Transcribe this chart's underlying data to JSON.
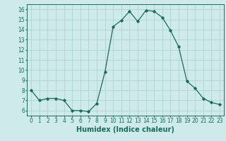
{
  "x": [
    0,
    1,
    2,
    3,
    4,
    5,
    6,
    7,
    8,
    9,
    10,
    11,
    12,
    13,
    14,
    15,
    16,
    17,
    18,
    19,
    20,
    21,
    22,
    23
  ],
  "y": [
    8.0,
    7.0,
    7.2,
    7.2,
    7.0,
    6.0,
    6.0,
    5.9,
    6.7,
    9.8,
    14.3,
    14.9,
    15.8,
    14.8,
    15.9,
    15.8,
    15.2,
    13.9,
    12.3,
    8.9,
    8.2,
    7.2,
    6.8,
    6.6
  ],
  "xlabel": "Humidex (Indice chaleur)",
  "ylim": [
    5.5,
    16.5
  ],
  "xlim": [
    -0.5,
    23.5
  ],
  "yticks": [
    6,
    7,
    8,
    9,
    10,
    11,
    12,
    13,
    14,
    15,
    16
  ],
  "xticks": [
    0,
    1,
    2,
    3,
    4,
    5,
    6,
    7,
    8,
    9,
    10,
    11,
    12,
    13,
    14,
    15,
    16,
    17,
    18,
    19,
    20,
    21,
    22,
    23
  ],
  "line_color": "#1a6b5a",
  "marker": "D",
  "marker_size": 1.8,
  "bg_color": "#ceeaea",
  "grid_color": "#aacece",
  "xlabel_fontsize": 7.0,
  "tick_fontsize": 5.5
}
